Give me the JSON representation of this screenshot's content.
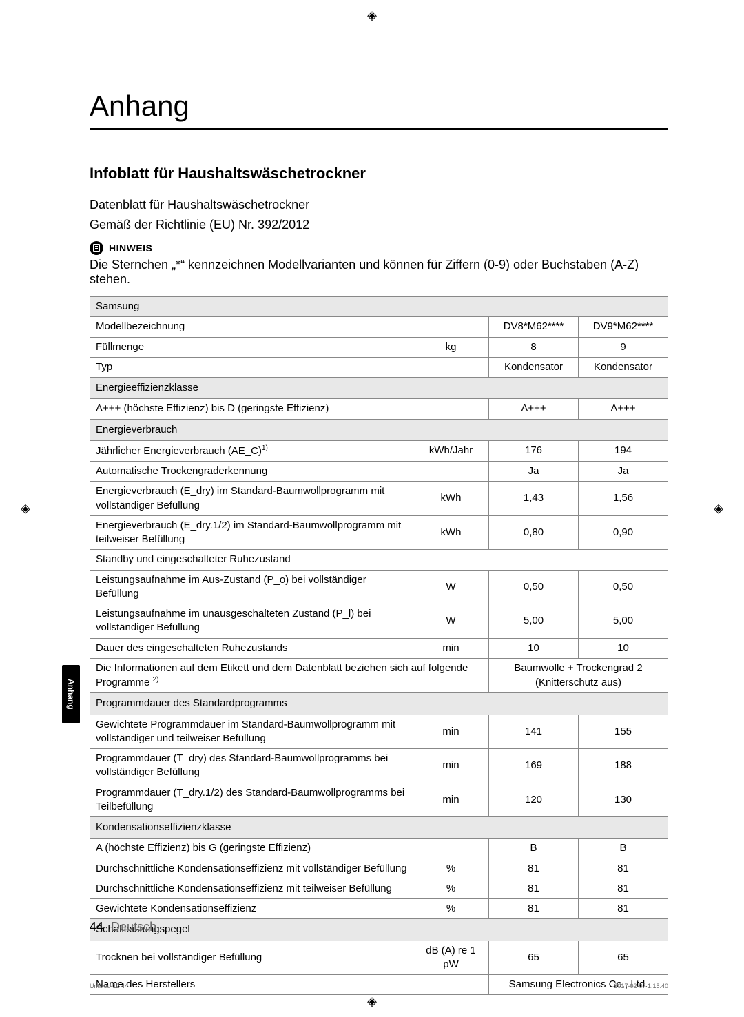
{
  "page": {
    "title": "Anhang",
    "section_title": "Infoblatt für Haushaltswäschetrockner",
    "intro_line1": "Datenblatt für Haushaltswäschetrockner",
    "intro_line2": "Gemäß der Richtlinie (EU) Nr. 392/2012",
    "hinweis_label": "HINWEIS",
    "note_text": "Die Sternchen „*“ kennzeichnen Modellvarianten und können für Ziffern (0-9) oder Buchstaben (A-Z) stehen.",
    "side_tab": "Anhang",
    "page_number": "44",
    "language": "Deutsch",
    "print_left": "Untitled-12   44",
    "print_right": "2017-02-07   1:15:40"
  },
  "table": {
    "brand": "Samsung",
    "rows": [
      {
        "type": "data",
        "label": "Modellbezeichnung",
        "unit": "",
        "v1": "DV8*M62****",
        "v2": "DV9*M62****",
        "merge_unit": true
      },
      {
        "type": "data",
        "label": "Füllmenge",
        "unit": "kg",
        "v1": "8",
        "v2": "9"
      },
      {
        "type": "data",
        "label": "Typ",
        "unit": "",
        "v1": "Kondensator",
        "v2": "Kondensator",
        "merge_unit": true
      },
      {
        "type": "section",
        "label": "Energieeffizienzklasse"
      },
      {
        "type": "data",
        "label": "A+++ (höchste Effizienz) bis D (geringste Effizienz)",
        "unit": "",
        "v1": "A+++",
        "v2": "A+++",
        "merge_unit": true
      },
      {
        "type": "section",
        "label": "Energieverbrauch"
      },
      {
        "type": "data",
        "label": "Jährlicher Energieverbrauch (AE_C)",
        "sup": "1)",
        "unit": "kWh/Jahr",
        "v1": "176",
        "v2": "194"
      },
      {
        "type": "data",
        "label": "Automatische Trockengraderkennung",
        "unit": "",
        "v1": "Ja",
        "v2": "Ja",
        "merge_unit": true
      },
      {
        "type": "data",
        "label": "Energieverbrauch (E_dry) im Standard-Baumwollprogramm mit vollständiger Befüllung",
        "unit": "kWh",
        "v1": "1,43",
        "v2": "1,56"
      },
      {
        "type": "data",
        "label": "Energieverbrauch (E_dry.1/2) im Standard-Baumwollprogramm mit teilweiser Befüllung",
        "unit": "kWh",
        "v1": "0,80",
        "v2": "0,90"
      },
      {
        "type": "data",
        "label": "Standby und eingeschalteter Ruhezustand",
        "full_row": true
      },
      {
        "type": "data",
        "label": "Leistungsaufnahme im Aus-Zustand (P_o) bei vollständiger Befüllung",
        "unit": "W",
        "v1": "0,50",
        "v2": "0,50"
      },
      {
        "type": "data",
        "label": "Leistungsaufnahme im unausgeschalteten Zustand (P_l) bei vollständiger Befüllung",
        "unit": "W",
        "v1": "5,00",
        "v2": "5,00"
      },
      {
        "type": "data",
        "label": "Dauer des eingeschalteten Ruhezustands",
        "unit": "min",
        "v1": "10",
        "v2": "10"
      },
      {
        "type": "data",
        "label": "Die Informationen auf dem Etikett und dem Datenblatt beziehen sich auf folgende Programme ",
        "sup": "2)",
        "unit": "",
        "v1v2": "Baumwolle + Trockengrad 2 (Knitterschutz aus)",
        "merge_unit": true,
        "merge_values": true
      },
      {
        "type": "section",
        "label": "Programmdauer des Standardprogramms"
      },
      {
        "type": "data",
        "label": "Gewichtete Programmdauer im Standard-Baumwollprogramm mit vollständiger und teilweiser Befüllung",
        "unit": "min",
        "v1": "141",
        "v2": "155"
      },
      {
        "type": "data",
        "label": "Programmdauer (T_dry) des Standard-Baumwollprogramms bei vollständiger Befüllung",
        "unit": "min",
        "v1": "169",
        "v2": "188"
      },
      {
        "type": "data",
        "label": "Programmdauer (T_dry.1/2) des Standard-Baumwollprogramms bei Teilbefüllung",
        "unit": "min",
        "v1": "120",
        "v2": "130"
      },
      {
        "type": "section",
        "label": "Kondensationseffizienzklasse"
      },
      {
        "type": "data",
        "label": "A (höchste Effizienz) bis G (geringste Effizienz)",
        "unit": "",
        "v1": "B",
        "v2": "B",
        "merge_unit": true
      },
      {
        "type": "data",
        "label": "Durchschnittliche Kondensationseffizienz mit vollständiger Befüllung",
        "unit": "%",
        "v1": "81",
        "v2": "81"
      },
      {
        "type": "data",
        "label": "Durchschnittliche Kondensationseffizienz mit teilweiser Befüllung",
        "unit": "%",
        "v1": "81",
        "v2": "81"
      },
      {
        "type": "data",
        "label": "Gewichtete Kondensationseffizienz",
        "unit": "%",
        "v1": "81",
        "v2": "81"
      },
      {
        "type": "section",
        "label": "Schallleistungspegel"
      },
      {
        "type": "data",
        "label": "Trocknen bei vollständiger Befüllung",
        "unit": "dB (A) re 1 pW",
        "v1": "65",
        "v2": "65"
      },
      {
        "type": "data",
        "label": "Name des Herstellers",
        "unit": "",
        "v1v2": "Samsung Electronics Co., Ltd.",
        "merge_unit": true,
        "merge_values": true
      }
    ]
  }
}
